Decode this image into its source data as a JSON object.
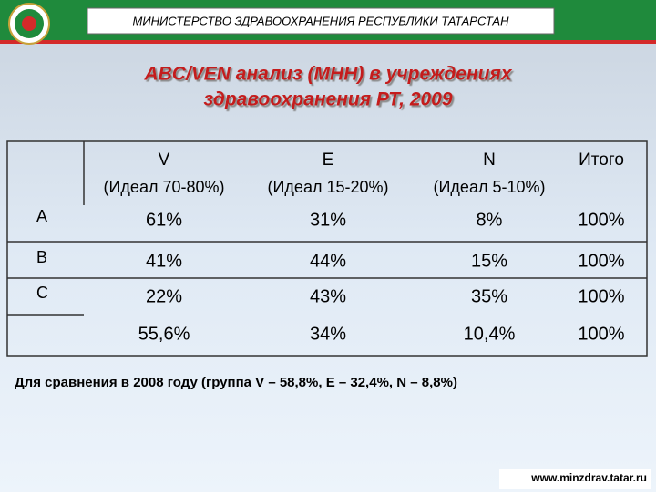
{
  "header": {
    "ministry": "МИНИСТЕРСТВО ЗДРАВООХРАНЕНИЯ РЕСПУБЛИКИ ТАТАРСТАН"
  },
  "title": {
    "line1": "ABC/VEN анализ (МНН) в учреждениях",
    "line2": "здравоохранения РТ, 2009"
  },
  "table": {
    "columns": [
      {
        "name": "V",
        "ideal": "(Идеал 70-80%)"
      },
      {
        "name": "E",
        "ideal": "(Идеал 15-20%)"
      },
      {
        "name": "N",
        "ideal": "(Идеал 5-10%)"
      },
      {
        "name": "Итого"
      }
    ],
    "rows": [
      {
        "label": "A",
        "cells": [
          "61%",
          "31%",
          "8%",
          "100%"
        ]
      },
      {
        "label": "B",
        "cells": [
          "41%",
          "44%",
          "15%",
          "100%"
        ]
      },
      {
        "label": "C",
        "cells": [
          "22%",
          "43%",
          "35%",
          "100%"
        ]
      },
      {
        "cells": [
          "55,6%",
          "34%",
          "10,4%",
          "100%"
        ]
      }
    ]
  },
  "footnote": "Для сравнения в 2008 году (группа V – 58,8%, E – 32,4%, N – 8,8%)",
  "url": "www.minzdrav.tatar.ru"
}
